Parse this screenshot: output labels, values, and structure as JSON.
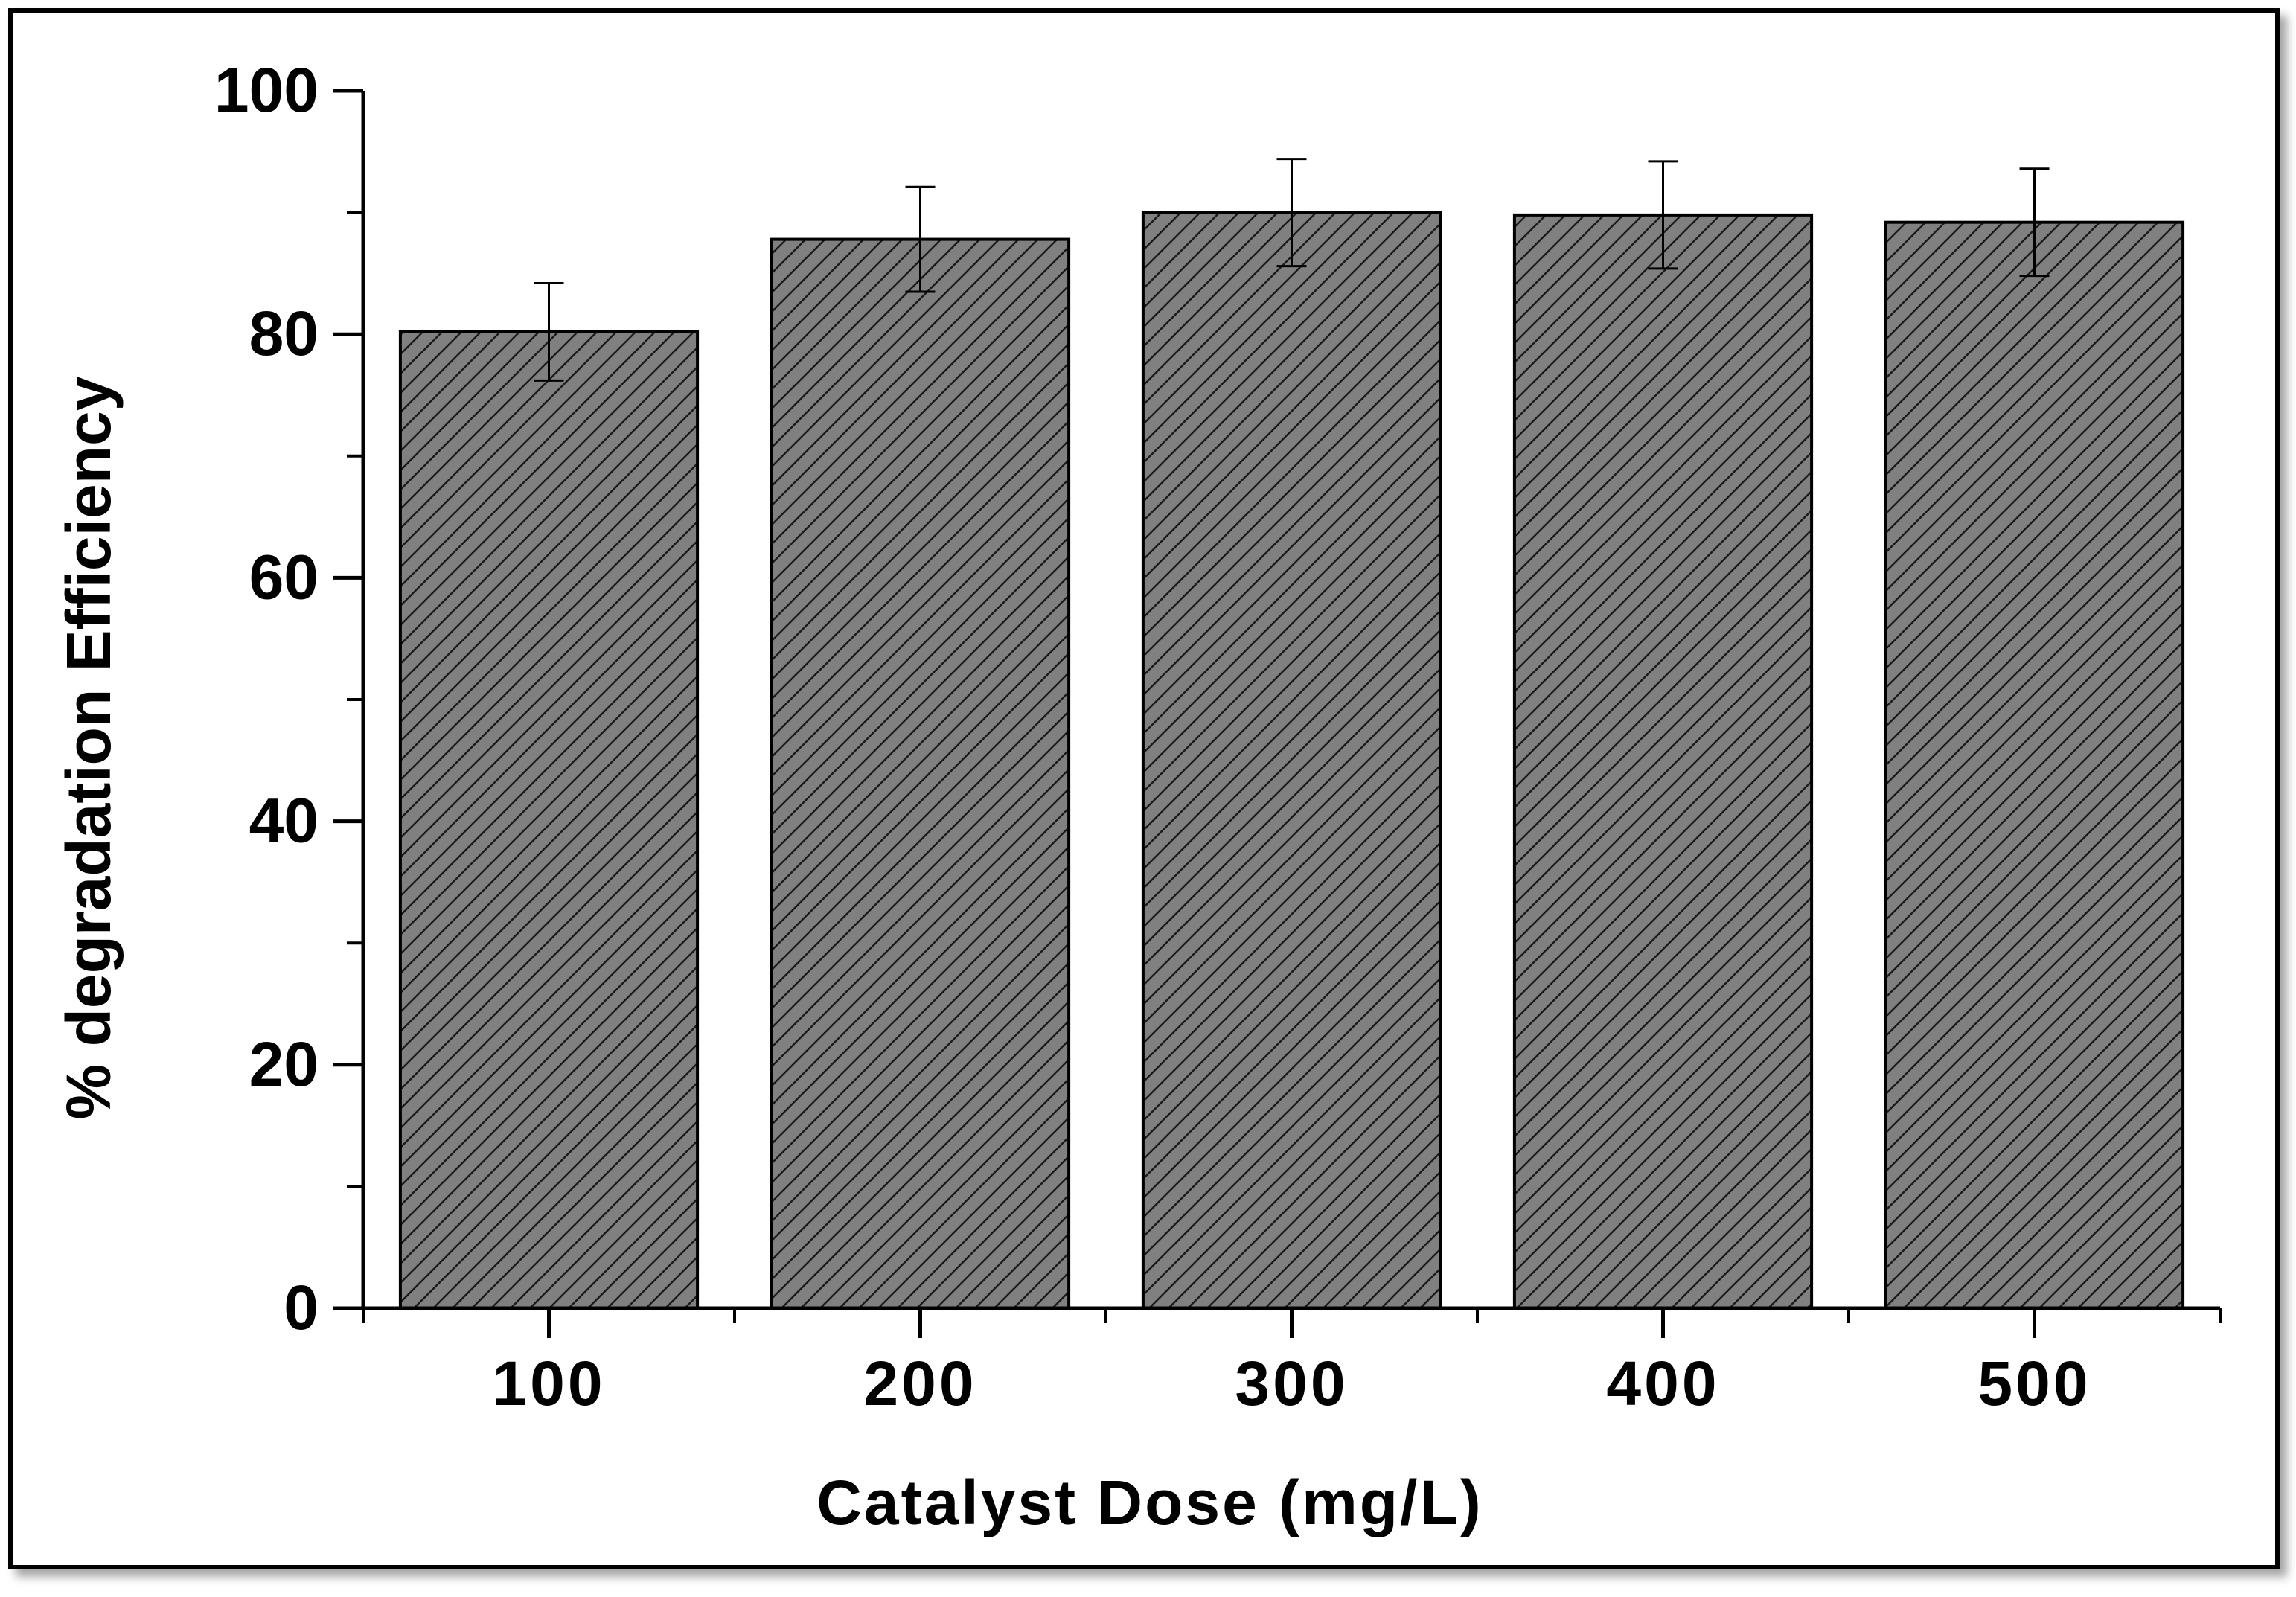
{
  "chart_data": {
    "type": "bar",
    "title": "",
    "xlabel": "Catalyst Dose (mg/L)",
    "ylabel": "% degradation Efficiency",
    "categories": [
      "100",
      "200",
      "300",
      "400",
      "500"
    ],
    "values": [
      80.2,
      87.8,
      90.0,
      89.8,
      89.2
    ],
    "error": [
      4.0,
      4.3,
      4.4,
      4.4,
      4.4
    ],
    "ylim": [
      0,
      100
    ],
    "yticks": [
      0,
      20,
      40,
      60,
      80,
      100
    ],
    "ytick_labels": [
      "0",
      "20",
      "40",
      "60",
      "80",
      "100"
    ],
    "grid": false,
    "bar_fill": "#808080",
    "bar_hatch": "diagonal",
    "frame_color": "#000000"
  }
}
